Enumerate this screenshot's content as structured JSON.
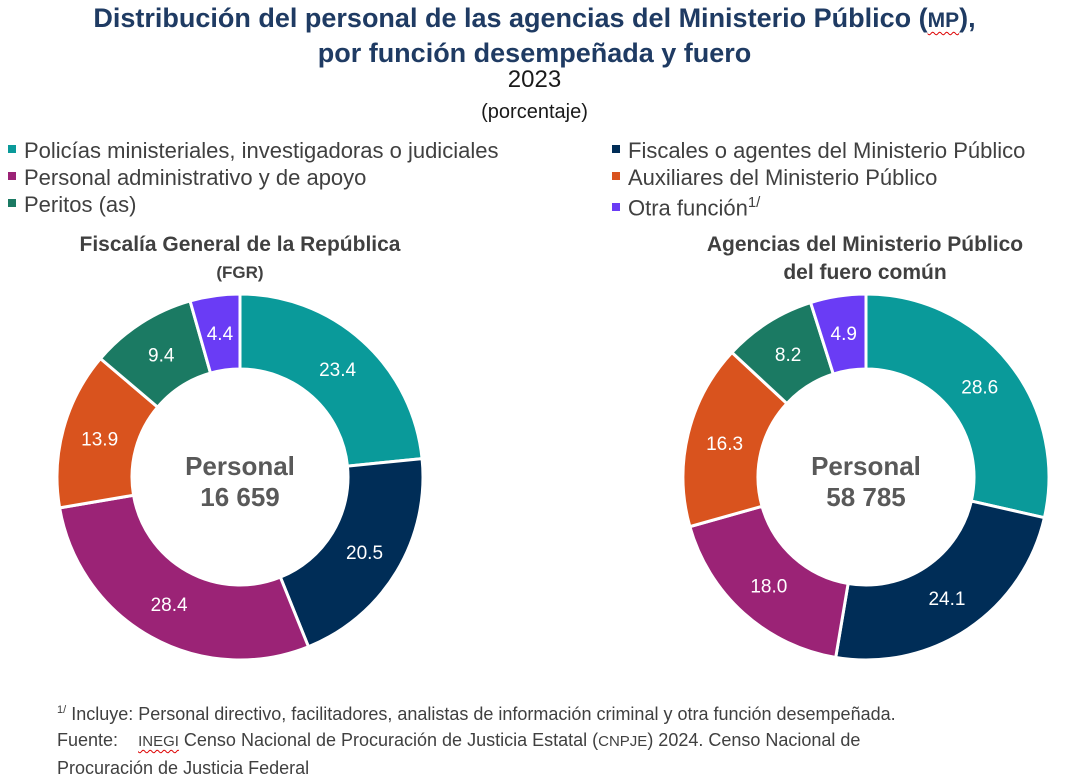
{
  "title_line1": "Distribución del personal de las agencias del Ministerio Público (",
  "title_mp": "MP",
  "title_line1_end": "),",
  "title_line2": "por función desempeñada y fuero",
  "year": "2023",
  "unit": "(porcentaje)",
  "legend": [
    {
      "label": "Policías ministeriales, investigadoras o judiciales",
      "color": "#0a9a9a"
    },
    {
      "label": "Fiscales o agentes del Ministerio Público",
      "color": "#002d57"
    },
    {
      "label": "Personal administrativo y de apoyo",
      "color": "#9b2376"
    },
    {
      "label": "Auxiliares del Ministerio Público",
      "color": "#d9531e"
    },
    {
      "label": "Peritos (as)",
      "color": "#1b7a63"
    },
    {
      "label": "Otra función",
      "sup": "1/",
      "color": "#6a3cf5"
    }
  ],
  "chart_data": [
    {
      "type": "pie",
      "title_line1": "Fiscalía General de la República",
      "title_line2": "(FGR)",
      "center_label": "Personal",
      "center_value": "16 659",
      "categories": [
        "Policías ministeriales, investigadoras o judiciales",
        "Fiscales o agentes del Ministerio Público",
        "Personal administrativo y de apoyo",
        "Auxiliares del Ministerio Público",
        "Peritos (as)",
        "Otra función"
      ],
      "values": [
        23.4,
        20.5,
        28.4,
        13.9,
        9.4,
        4.4
      ],
      "labels": [
        "23.4",
        "20.5",
        "28.4",
        "13.9",
        "9.4",
        "4.4"
      ]
    },
    {
      "type": "pie",
      "title_line1": "Agencias del Ministerio Público",
      "title_line2": "del fuero común",
      "center_label": "Personal",
      "center_value": "58 785",
      "categories": [
        "Policías ministeriales, investigadoras o judiciales",
        "Fiscales o agentes del Ministerio Público",
        "Personal administrativo y de apoyo",
        "Auxiliares del Ministerio Público",
        "Peritos (as)",
        "Otra función"
      ],
      "values": [
        28.6,
        24.1,
        18.0,
        16.3,
        8.2,
        4.9
      ],
      "labels": [
        "28.6",
        "24.1",
        "18.0",
        "16.3",
        "8.2",
        "4.9"
      ]
    }
  ],
  "notes": {
    "note_sup": "1/",
    "note_text": " Incluye: Personal directivo, facilitadores, analistas de información criminal y otra función desempeñada.",
    "source_prefix": "Fuente:",
    "source_inegi": "INEGI",
    "source_text": " Censo Nacional de Procuración de Justicia Estatal (",
    "source_cnpje": "CNPJE",
    "source_text2": ") 2024. Censo Nacional de",
    "source_line3": "Procuración de Justicia Federal"
  }
}
